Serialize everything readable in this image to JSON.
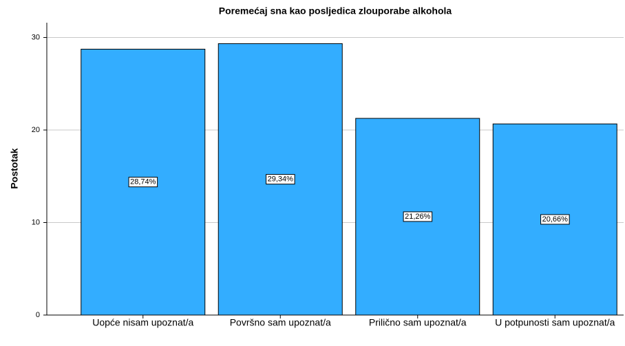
{
  "chart_data": {
    "type": "bar",
    "title": "Poremećaj sna kao posljedica zlouporabe alkohola",
    "y_label": "Postotak",
    "categories": [
      "Uopće nisam upoznat/a",
      "Površno sam upoznat/a",
      "Prilično sam upoznat/a",
      "U potpunosti sam upoznat/a"
    ],
    "values": [
      28.74,
      29.34,
      21.26,
      20.66
    ],
    "value_labels": [
      "28,74%",
      "29,34%",
      "21,26%",
      "20,66%"
    ],
    "color": "#33adff",
    "ylim": [
      0,
      31.6
    ],
    "yticks": [
      0,
      10,
      20,
      30
    ],
    "grid": true
  }
}
